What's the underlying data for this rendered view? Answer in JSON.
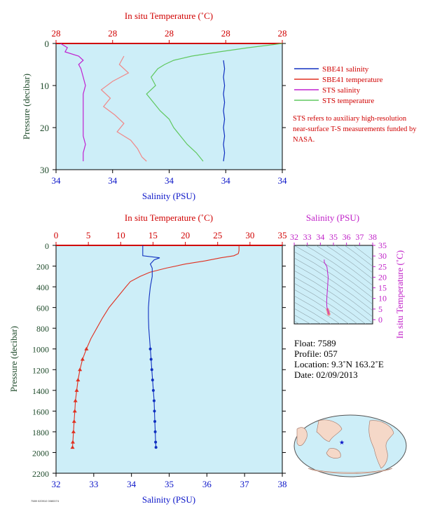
{
  "colors": {
    "panel_bg": "#cdeef8",
    "temperature_axis": "#d00000",
    "salinity_axis": "#0a14c8",
    "pressure_label": "#1e4a2a",
    "ts_axis": "#c020c8",
    "sbe_salinity": "#1030c0",
    "sbe_temperature": "#e03020",
    "sts_salinity": "#c020d0",
    "sts_temperature": "#60c860",
    "sts_temperature_pink": "#f08888"
  },
  "chart_data": [
    {
      "id": "near-surface",
      "type": "line",
      "top_axis_label": "In situ Temperature (˚C)",
      "top_ticks": [
        "28",
        "28",
        "28",
        "28",
        "28"
      ],
      "bottom_axis_label": "Salinity (PSU)",
      "bottom_ticks": [
        "34",
        "34",
        "34",
        "34",
        "34"
      ],
      "ylabel": "Pressure (decibar)",
      "y_ticks": [
        "0",
        "10",
        "20",
        "30"
      ],
      "ylim": [
        0,
        30
      ],
      "x_range_fraction": [
        0,
        1
      ],
      "legend_position": "right",
      "legend": [
        {
          "name": "SBE41 salinity",
          "color": "#1030c0"
        },
        {
          "name": "SBE41 temperature",
          "color": "#e03020"
        },
        {
          "name": "STS salinity",
          "color": "#c020d0"
        },
        {
          "name": "STS temperature",
          "color": "#60c860"
        }
      ],
      "note": "STS refers to auxiliary high-resolution near-surface T-S measurements funded by NASA.",
      "series": [
        {
          "name": "SBE41 salinity",
          "pressure": [
            4,
            6,
            8,
            10,
            12,
            14,
            16,
            18,
            20,
            22,
            24,
            26,
            28
          ],
          "x_fraction": [
            0.74,
            0.745,
            0.74,
            0.745,
            0.74,
            0.745,
            0.74,
            0.745,
            0.74,
            0.745,
            0.74,
            0.745,
            0.74
          ]
        },
        {
          "name": "STS salinity",
          "pressure": [
            0,
            1,
            2,
            3,
            4,
            5,
            6,
            8,
            10,
            12,
            14,
            16,
            18,
            20,
            22,
            24,
            26,
            28
          ],
          "x_fraction": [
            0.02,
            0.05,
            0.04,
            0.1,
            0.12,
            0.1,
            0.11,
            0.12,
            0.13,
            0.12,
            0.12,
            0.12,
            0.12,
            0.12,
            0.12,
            0.13,
            0.12,
            0.12
          ]
        },
        {
          "name": "STS temperature pink",
          "pressure": [
            3,
            5,
            7,
            9,
            11,
            13,
            15,
            17,
            19,
            21,
            23,
            25,
            27,
            28
          ],
          "x_fraction": [
            0.3,
            0.28,
            0.32,
            0.25,
            0.2,
            0.24,
            0.21,
            0.26,
            0.3,
            0.27,
            0.33,
            0.36,
            0.38,
            0.4
          ]
        },
        {
          "name": "STS temperature",
          "pressure": [
            0,
            1,
            2,
            3,
            4,
            5,
            6,
            8,
            10,
            12,
            14,
            16,
            18,
            20,
            22,
            24,
            26,
            28
          ],
          "x_fraction": [
            1.0,
            0.85,
            0.72,
            0.6,
            0.52,
            0.48,
            0.45,
            0.42,
            0.44,
            0.4,
            0.43,
            0.46,
            0.5,
            0.52,
            0.55,
            0.58,
            0.62,
            0.65
          ]
        }
      ]
    },
    {
      "id": "full-profile",
      "type": "line",
      "top_axis_label": "In situ Temperature (˚C)",
      "top_ticks": [
        "0",
        "5",
        "10",
        "15",
        "20",
        "25",
        "30",
        "35"
      ],
      "xlim_temperature": [
        0,
        35
      ],
      "bottom_axis_label": "Salinity (PSU)",
      "bottom_ticks": [
        "32",
        "33",
        "34",
        "35",
        "36",
        "37",
        "38"
      ],
      "xlim_salinity": [
        32,
        38
      ],
      "ylabel": "Pressure (decibar)",
      "y_ticks": [
        "0",
        "200",
        "400",
        "600",
        "800",
        "1000",
        "1200",
        "1400",
        "1600",
        "1800",
        "2000",
        "2200"
      ],
      "ylim": [
        0,
        2200
      ],
      "temperature": {
        "pressure": [
          0,
          50,
          80,
          100,
          120,
          150,
          180,
          220,
          260,
          300,
          350,
          400,
          500,
          600,
          700,
          800,
          900,
          1000,
          1100,
          1200,
          1300,
          1400,
          1500,
          1600,
          1700,
          1800,
          1900,
          1950
        ],
        "values": [
          28.3,
          28.3,
          28.2,
          27.5,
          25.5,
          23,
          20,
          17,
          14.5,
          13,
          11.5,
          10.8,
          9.5,
          8.2,
          7.2,
          6.3,
          5.4,
          4.7,
          4.1,
          3.7,
          3.4,
          3.2,
          3.0,
          2.9,
          2.8,
          2.7,
          2.6,
          2.55
        ]
      },
      "salinity": {
        "pressure": [
          0,
          60,
          100,
          120,
          140,
          180,
          220,
          300,
          400,
          500,
          600,
          700,
          800,
          900,
          1000,
          1100,
          1200,
          1300,
          1400,
          1500,
          1600,
          1700,
          1800,
          1900,
          1950
        ],
        "values": [
          34.3,
          34.3,
          34.3,
          34.75,
          34.6,
          34.5,
          34.55,
          34.55,
          34.5,
          34.47,
          34.45,
          34.45,
          34.46,
          34.48,
          34.5,
          34.52,
          34.54,
          34.56,
          34.58,
          34.6,
          34.61,
          34.62,
          34.63,
          34.64,
          34.65
        ]
      },
      "temperature_markers_from_pressure": 1000,
      "salinity_markers_from_pressure": 1000
    },
    {
      "id": "ts-diagram",
      "type": "line",
      "top_axis_label": "Salinity (PSU)",
      "top_ticks": [
        "32",
        "33",
        "34",
        "35",
        "36",
        "37",
        "38"
      ],
      "xlim": [
        32,
        38
      ],
      "ylabel": "In situ Temperature (˚C)",
      "y_ticks": [
        "0",
        "5",
        "10",
        "15",
        "20",
        "25",
        "30",
        "35"
      ],
      "ylim": [
        -2,
        35
      ],
      "series": [
        {
          "name": "T-S profile",
          "salinity": [
            34.3,
            34.3,
            34.5,
            34.6,
            34.55,
            34.5,
            34.48,
            34.5,
            34.55,
            34.6,
            34.63,
            34.65
          ],
          "temperature": [
            28.3,
            27,
            25,
            20,
            15,
            11,
            8,
            6,
            4.7,
            3.7,
            3.0,
            2.6
          ]
        }
      ]
    }
  ],
  "float_info": {
    "float": "Float:  7589",
    "profile": "Profile:  057",
    "location": "Location:  9.3˚N  163.2˚E",
    "date": "Date:  02/09/2013"
  },
  "map": {
    "marker_label": "★"
  },
  "footer_id": "7589 020910 0080074"
}
